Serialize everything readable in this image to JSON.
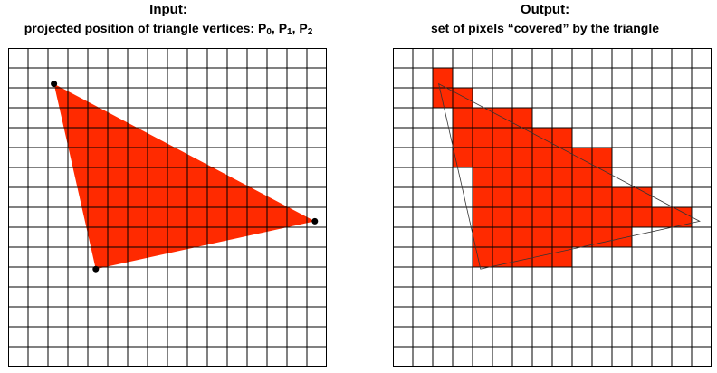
{
  "input_panel": {
    "heading": "Input:",
    "subheading_text": "projected position of triangle vertices: ",
    "vertex_labels": [
      {
        "letter": "P",
        "index": "0"
      },
      {
        "letter": "P",
        "index": "1"
      },
      {
        "letter": "P",
        "index": "2"
      }
    ],
    "separator": ", "
  },
  "output_panel": {
    "heading": "Output:",
    "subheading": "set of pixels “covered” by the triangle"
  },
  "grid": {
    "columns": 16,
    "rows": 16
  },
  "triangle": {
    "vertices_grid": [
      [
        2.3,
        1.8
      ],
      [
        4.4,
        11.1
      ],
      [
        15.4,
        8.7
      ]
    ]
  },
  "covered_pixels": [
    [
      2,
      1
    ],
    [
      2,
      2
    ],
    [
      3,
      2
    ],
    [
      3,
      3
    ],
    [
      4,
      3
    ],
    [
      5,
      3
    ],
    [
      6,
      3
    ],
    [
      3,
      4
    ],
    [
      4,
      4
    ],
    [
      5,
      4
    ],
    [
      6,
      4
    ],
    [
      7,
      4
    ],
    [
      8,
      4
    ],
    [
      3,
      5
    ],
    [
      4,
      5
    ],
    [
      5,
      5
    ],
    [
      6,
      5
    ],
    [
      7,
      5
    ],
    [
      8,
      5
    ],
    [
      9,
      5
    ],
    [
      10,
      5
    ],
    [
      4,
      6
    ],
    [
      5,
      6
    ],
    [
      6,
      6
    ],
    [
      7,
      6
    ],
    [
      8,
      6
    ],
    [
      9,
      6
    ],
    [
      10,
      6
    ],
    [
      4,
      7
    ],
    [
      5,
      7
    ],
    [
      6,
      7
    ],
    [
      7,
      7
    ],
    [
      8,
      7
    ],
    [
      9,
      7
    ],
    [
      10,
      7
    ],
    [
      11,
      7
    ],
    [
      12,
      7
    ],
    [
      4,
      8
    ],
    [
      5,
      8
    ],
    [
      6,
      8
    ],
    [
      7,
      8
    ],
    [
      8,
      8
    ],
    [
      9,
      8
    ],
    [
      10,
      8
    ],
    [
      11,
      8
    ],
    [
      12,
      8
    ],
    [
      13,
      8
    ],
    [
      14,
      8
    ],
    [
      4,
      9
    ],
    [
      5,
      9
    ],
    [
      6,
      9
    ],
    [
      7,
      9
    ],
    [
      8,
      9
    ],
    [
      9,
      9
    ],
    [
      10,
      9
    ],
    [
      11,
      9
    ],
    [
      4,
      10
    ],
    [
      5,
      10
    ],
    [
      6,
      10
    ],
    [
      7,
      10
    ],
    [
      8,
      10
    ]
  ],
  "colors": {
    "fill": "#ff2a00",
    "grid_line": "#000000",
    "vertex_dot": "#000000",
    "outline": "#333333"
  }
}
